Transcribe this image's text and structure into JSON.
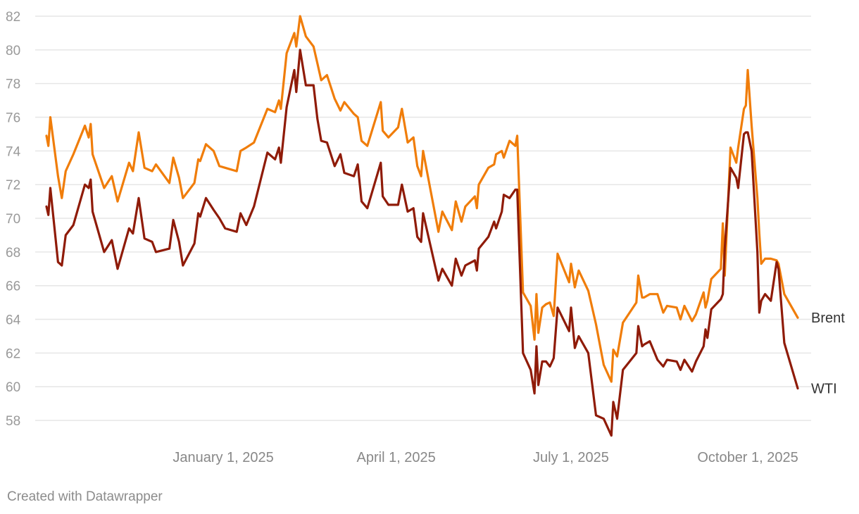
{
  "chart_data": {
    "type": "line",
    "grid": true,
    "legend": "inline labels at line ends (right)",
    "ylim": [
      57,
      82
    ],
    "yticks": [
      58,
      60,
      62,
      64,
      66,
      68,
      70,
      72,
      74,
      76,
      78,
      80,
      82
    ],
    "xlim": [
      "2024-10-01",
      "2025-10-27"
    ],
    "xticks": [
      {
        "date": "2025-01-01",
        "label": "January 1, 2025"
      },
      {
        "date": "2025-04-01",
        "label": "April 1, 2025"
      },
      {
        "date": "2025-07-01",
        "label": "July 1, 2025"
      },
      {
        "date": "2025-10-01",
        "label": "October 1, 2025"
      }
    ],
    "series": [
      {
        "name": "Brent",
        "color": "#f07d0a",
        "points": [
          [
            "2024-10-01",
            74.9
          ],
          [
            "2024-10-02",
            74.3
          ],
          [
            "2024-10-03",
            76.0
          ],
          [
            "2024-10-07",
            72.5
          ],
          [
            "2024-10-09",
            71.2
          ],
          [
            "2024-10-11",
            72.8
          ],
          [
            "2024-10-15",
            73.8
          ],
          [
            "2024-10-21",
            75.5
          ],
          [
            "2024-10-23",
            74.8
          ],
          [
            "2024-10-24",
            75.6
          ],
          [
            "2024-10-25",
            73.8
          ],
          [
            "2024-10-31",
            71.8
          ],
          [
            "2024-11-04",
            72.5
          ],
          [
            "2024-11-07",
            71.0
          ],
          [
            "2024-11-13",
            73.3
          ],
          [
            "2024-11-15",
            72.8
          ],
          [
            "2024-11-18",
            75.1
          ],
          [
            "2024-11-21",
            73.0
          ],
          [
            "2024-11-25",
            72.8
          ],
          [
            "2024-11-27",
            73.2
          ],
          [
            "2024-12-04",
            72.1
          ],
          [
            "2024-12-06",
            73.6
          ],
          [
            "2024-12-09",
            72.4
          ],
          [
            "2024-12-11",
            71.2
          ],
          [
            "2024-12-17",
            72.1
          ],
          [
            "2024-12-19",
            73.5
          ],
          [
            "2024-12-20",
            73.4
          ],
          [
            "2024-12-23",
            74.4
          ],
          [
            "2024-12-27",
            74.0
          ],
          [
            "2024-12-30",
            73.1
          ],
          [
            "2025-01-02",
            73.0
          ],
          [
            "2025-01-08",
            72.8
          ],
          [
            "2025-01-10",
            74.0
          ],
          [
            "2025-01-13",
            74.2
          ],
          [
            "2025-01-17",
            74.5
          ],
          [
            "2025-01-24",
            76.5
          ],
          [
            "2025-01-28",
            76.3
          ],
          [
            "2025-01-30",
            77.0
          ],
          [
            "2025-01-31",
            76.5
          ],
          [
            "2025-02-03",
            79.8
          ],
          [
            "2025-02-07",
            81.0
          ],
          [
            "2025-02-08",
            80.2
          ],
          [
            "2025-02-10",
            82.0
          ],
          [
            "2025-02-13",
            80.8
          ],
          [
            "2025-02-17",
            80.2
          ],
          [
            "2025-02-19",
            79.2
          ],
          [
            "2025-02-21",
            78.2
          ],
          [
            "2025-02-24",
            78.5
          ],
          [
            "2025-02-28",
            77.1
          ],
          [
            "2025-03-03",
            76.4
          ],
          [
            "2025-03-05",
            76.9
          ],
          [
            "2025-03-10",
            76.2
          ],
          [
            "2025-03-12",
            76.0
          ],
          [
            "2025-03-14",
            74.6
          ],
          [
            "2025-03-17",
            74.3
          ],
          [
            "2025-03-24",
            76.9
          ],
          [
            "2025-03-25",
            75.2
          ],
          [
            "2025-03-28",
            74.8
          ],
          [
            "2025-04-02",
            75.4
          ],
          [
            "2025-04-04",
            76.5
          ],
          [
            "2025-04-07",
            74.5
          ],
          [
            "2025-04-10",
            74.8
          ],
          [
            "2025-04-12",
            73.1
          ],
          [
            "2025-04-14",
            72.5
          ],
          [
            "2025-04-15",
            74.0
          ],
          [
            "2025-04-23",
            69.2
          ],
          [
            "2025-04-25",
            70.4
          ],
          [
            "2025-04-30",
            69.3
          ],
          [
            "2025-05-02",
            71.0
          ],
          [
            "2025-05-05",
            69.8
          ],
          [
            "2025-05-07",
            70.7
          ],
          [
            "2025-05-12",
            71.3
          ],
          [
            "2025-05-13",
            70.6
          ],
          [
            "2025-05-14",
            72.0
          ],
          [
            "2025-05-19",
            73.0
          ],
          [
            "2025-05-22",
            73.2
          ],
          [
            "2025-05-23",
            73.8
          ],
          [
            "2025-05-26",
            74.0
          ],
          [
            "2025-05-27",
            73.6
          ],
          [
            "2025-05-30",
            74.6
          ],
          [
            "2025-06-02",
            74.3
          ],
          [
            "2025-06-03",
            74.9
          ],
          [
            "2025-06-06",
            65.6
          ],
          [
            "2025-06-10",
            64.8
          ],
          [
            "2025-06-12",
            62.8
          ],
          [
            "2025-06-13",
            65.5
          ],
          [
            "2025-06-14",
            63.2
          ],
          [
            "2025-06-16",
            64.7
          ],
          [
            "2025-06-18",
            64.9
          ],
          [
            "2025-06-20",
            65.0
          ],
          [
            "2025-06-22",
            64.2
          ],
          [
            "2025-06-24",
            67.9
          ],
          [
            "2025-06-30",
            66.2
          ],
          [
            "2025-07-01",
            67.3
          ],
          [
            "2025-07-03",
            65.9
          ],
          [
            "2025-07-05",
            66.9
          ],
          [
            "2025-07-10",
            65.7
          ],
          [
            "2025-07-14",
            63.7
          ],
          [
            "2025-07-18",
            61.3
          ],
          [
            "2025-07-22",
            60.3
          ],
          [
            "2025-07-23",
            62.2
          ],
          [
            "2025-07-25",
            61.8
          ],
          [
            "2025-07-28",
            63.8
          ],
          [
            "2025-08-04",
            65.0
          ],
          [
            "2025-08-05",
            66.6
          ],
          [
            "2025-08-07",
            65.3
          ],
          [
            "2025-08-08",
            65.3
          ],
          [
            "2025-08-11",
            65.5
          ],
          [
            "2025-08-15",
            65.5
          ],
          [
            "2025-08-18",
            64.4
          ],
          [
            "2025-08-20",
            64.8
          ],
          [
            "2025-08-25",
            64.7
          ],
          [
            "2025-08-27",
            64.0
          ],
          [
            "2025-08-29",
            64.8
          ],
          [
            "2025-09-02",
            63.9
          ],
          [
            "2025-09-04",
            64.3
          ],
          [
            "2025-09-08",
            65.6
          ],
          [
            "2025-09-09",
            64.7
          ],
          [
            "2025-09-10",
            65.1
          ],
          [
            "2025-09-12",
            66.4
          ],
          [
            "2025-09-17",
            67.0
          ],
          [
            "2025-09-18",
            69.7
          ],
          [
            "2025-09-19",
            66.6
          ],
          [
            "2025-09-22",
            74.2
          ],
          [
            "2025-09-25",
            73.3
          ],
          [
            "2025-09-26",
            74.2
          ],
          [
            "2025-09-29",
            76.5
          ],
          [
            "2025-09-30",
            76.7
          ],
          [
            "2025-10-01",
            78.8
          ],
          [
            "2025-10-03",
            75.5
          ],
          [
            "2025-10-06",
            71.2
          ],
          [
            "2025-10-07",
            69.1
          ],
          [
            "2025-10-08",
            67.3
          ],
          [
            "2025-10-10",
            67.6
          ],
          [
            "2025-10-13",
            67.6
          ],
          [
            "2025-10-16",
            67.5
          ],
          [
            "2025-10-17",
            67.3
          ],
          [
            "2025-10-20",
            65.5
          ],
          [
            "2025-10-27",
            64.1
          ]
        ]
      },
      {
        "name": "WTI",
        "color": "#8f1b08",
        "points": [
          [
            "2024-10-01",
            70.7
          ],
          [
            "2024-10-02",
            70.2
          ],
          [
            "2024-10-03",
            71.8
          ],
          [
            "2024-10-07",
            67.4
          ],
          [
            "2024-10-09",
            67.2
          ],
          [
            "2024-10-11",
            69.0
          ],
          [
            "2024-10-15",
            69.6
          ],
          [
            "2024-10-21",
            72.0
          ],
          [
            "2024-10-23",
            71.8
          ],
          [
            "2024-10-24",
            72.3
          ],
          [
            "2024-10-25",
            70.4
          ],
          [
            "2024-10-31",
            68.0
          ],
          [
            "2024-11-04",
            68.7
          ],
          [
            "2024-11-07",
            67.0
          ],
          [
            "2024-11-13",
            69.4
          ],
          [
            "2024-11-15",
            69.1
          ],
          [
            "2024-11-18",
            71.2
          ],
          [
            "2024-11-21",
            68.8
          ],
          [
            "2024-11-25",
            68.6
          ],
          [
            "2024-11-27",
            68.0
          ],
          [
            "2024-12-04",
            68.2
          ],
          [
            "2024-12-06",
            69.9
          ],
          [
            "2024-12-09",
            68.6
          ],
          [
            "2024-12-11",
            67.2
          ],
          [
            "2024-12-17",
            68.5
          ],
          [
            "2024-12-19",
            70.3
          ],
          [
            "2024-12-20",
            70.1
          ],
          [
            "2024-12-23",
            71.2
          ],
          [
            "2024-12-27",
            70.5
          ],
          [
            "2024-12-30",
            70.0
          ],
          [
            "2025-01-02",
            69.4
          ],
          [
            "2025-01-08",
            69.2
          ],
          [
            "2025-01-10",
            70.3
          ],
          [
            "2025-01-13",
            69.6
          ],
          [
            "2025-01-17",
            70.7
          ],
          [
            "2025-01-24",
            73.9
          ],
          [
            "2025-01-28",
            73.5
          ],
          [
            "2025-01-30",
            74.2
          ],
          [
            "2025-01-31",
            73.3
          ],
          [
            "2025-02-03",
            76.6
          ],
          [
            "2025-02-07",
            78.8
          ],
          [
            "2025-02-08",
            77.5
          ],
          [
            "2025-02-10",
            80.0
          ],
          [
            "2025-02-13",
            77.9
          ],
          [
            "2025-02-17",
            77.9
          ],
          [
            "2025-02-19",
            75.9
          ],
          [
            "2025-02-21",
            74.6
          ],
          [
            "2025-02-24",
            74.5
          ],
          [
            "2025-02-28",
            73.1
          ],
          [
            "2025-03-03",
            73.8
          ],
          [
            "2025-03-05",
            72.7
          ],
          [
            "2025-03-10",
            72.5
          ],
          [
            "2025-03-12",
            73.2
          ],
          [
            "2025-03-14",
            71.0
          ],
          [
            "2025-03-17",
            70.6
          ],
          [
            "2025-03-24",
            73.3
          ],
          [
            "2025-03-25",
            71.3
          ],
          [
            "2025-03-28",
            70.8
          ],
          [
            "2025-04-02",
            70.8
          ],
          [
            "2025-04-04",
            72.0
          ],
          [
            "2025-04-07",
            70.4
          ],
          [
            "2025-04-10",
            70.6
          ],
          [
            "2025-04-12",
            68.9
          ],
          [
            "2025-04-14",
            68.6
          ],
          [
            "2025-04-15",
            70.3
          ],
          [
            "2025-04-23",
            66.3
          ],
          [
            "2025-04-25",
            67.0
          ],
          [
            "2025-04-30",
            66.0
          ],
          [
            "2025-05-02",
            67.6
          ],
          [
            "2025-05-05",
            66.6
          ],
          [
            "2025-05-07",
            67.2
          ],
          [
            "2025-05-12",
            67.5
          ],
          [
            "2025-05-13",
            66.9
          ],
          [
            "2025-05-14",
            68.2
          ],
          [
            "2025-05-19",
            68.9
          ],
          [
            "2025-05-22",
            69.8
          ],
          [
            "2025-05-23",
            69.4
          ],
          [
            "2025-05-26",
            70.4
          ],
          [
            "2025-05-27",
            71.4
          ],
          [
            "2025-05-30",
            71.2
          ],
          [
            "2025-06-02",
            71.7
          ],
          [
            "2025-06-03",
            71.7
          ],
          [
            "2025-06-06",
            62.0
          ],
          [
            "2025-06-10",
            61.0
          ],
          [
            "2025-06-12",
            59.6
          ],
          [
            "2025-06-13",
            62.4
          ],
          [
            "2025-06-14",
            60.1
          ],
          [
            "2025-06-16",
            61.5
          ],
          [
            "2025-06-18",
            61.5
          ],
          [
            "2025-06-20",
            61.2
          ],
          [
            "2025-06-22",
            61.7
          ],
          [
            "2025-06-24",
            64.7
          ],
          [
            "2025-06-30",
            63.3
          ],
          [
            "2025-07-01",
            64.7
          ],
          [
            "2025-07-03",
            62.3
          ],
          [
            "2025-07-05",
            63.0
          ],
          [
            "2025-07-10",
            62.0
          ],
          [
            "2025-07-14",
            58.3
          ],
          [
            "2025-07-18",
            58.1
          ],
          [
            "2025-07-22",
            57.1
          ],
          [
            "2025-07-23",
            59.1
          ],
          [
            "2025-07-25",
            58.1
          ],
          [
            "2025-07-28",
            61.0
          ],
          [
            "2025-08-04",
            62.0
          ],
          [
            "2025-08-05",
            63.6
          ],
          [
            "2025-08-07",
            62.4
          ],
          [
            "2025-08-08",
            62.5
          ],
          [
            "2025-08-11",
            62.7
          ],
          [
            "2025-08-15",
            61.6
          ],
          [
            "2025-08-18",
            61.2
          ],
          [
            "2025-08-20",
            61.6
          ],
          [
            "2025-08-25",
            61.5
          ],
          [
            "2025-08-27",
            61.0
          ],
          [
            "2025-08-29",
            61.6
          ],
          [
            "2025-09-02",
            60.9
          ],
          [
            "2025-09-04",
            61.5
          ],
          [
            "2025-09-08",
            62.4
          ],
          [
            "2025-09-09",
            63.4
          ],
          [
            "2025-09-10",
            62.9
          ],
          [
            "2025-09-12",
            64.6
          ],
          [
            "2025-09-17",
            65.2
          ],
          [
            "2025-09-18",
            65.5
          ],
          [
            "2025-09-19",
            68.2
          ],
          [
            "2025-09-22",
            73.0
          ],
          [
            "2025-09-25",
            72.4
          ],
          [
            "2025-09-26",
            71.8
          ],
          [
            "2025-09-29",
            75.0
          ],
          [
            "2025-09-30",
            75.1
          ],
          [
            "2025-10-01",
            75.1
          ],
          [
            "2025-10-03",
            74.0
          ],
          [
            "2025-10-06",
            68.0
          ],
          [
            "2025-10-07",
            64.4
          ],
          [
            "2025-10-08",
            65.1
          ],
          [
            "2025-10-10",
            65.5
          ],
          [
            "2025-10-13",
            65.1
          ],
          [
            "2025-10-16",
            67.4
          ],
          [
            "2025-10-17",
            67.0
          ],
          [
            "2025-10-20",
            62.6
          ],
          [
            "2025-10-27",
            59.9
          ]
        ]
      }
    ]
  },
  "footer": {
    "credit": "Created with Datawrapper"
  }
}
